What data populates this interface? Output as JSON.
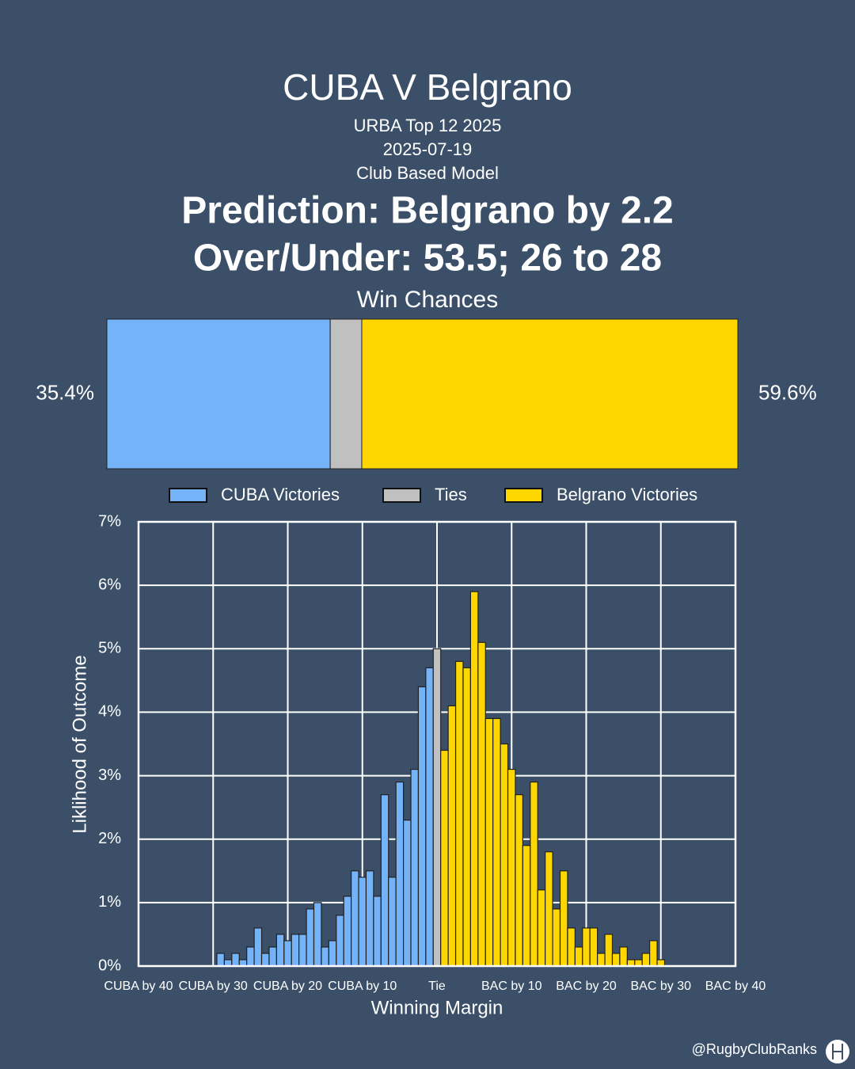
{
  "header": {
    "title": "CUBA V Belgrano",
    "lines": [
      "URBA Top 12 2025",
      "2025-07-19",
      "Club Based Model"
    ],
    "prediction": [
      "Prediction: Belgrano by 2.2",
      "Over/Under: 53.5; 26 to 28"
    ]
  },
  "chart_data": [
    {
      "type": "stacked_hbar",
      "title": "Win Chances",
      "series": [
        {
          "color": "#74b3f7",
          "values": [
            35.4
          ],
          "value_labels": [
            "35.4%"
          ]
        },
        {
          "color": "#c0c0c0",
          "values": [
            5.0
          ]
        },
        {
          "color": "#ffd700",
          "values": [
            59.6
          ],
          "value_labels": [
            "59.6%"
          ]
        }
      ]
    },
    {
      "type": "bar",
      "x_label": "Winning Margin",
      "y_label": "Liklihood of Outcome",
      "xlim": [
        -40,
        40
      ],
      "ylim": [
        0,
        7
      ],
      "grid": true,
      "xticks": [
        {
          "value": -40,
          "label": "CUBA by 40"
        },
        {
          "value": -30,
          "label": "CUBA by 30"
        },
        {
          "value": -20,
          "label": "CUBA by 20"
        },
        {
          "value": -10,
          "label": "CUBA by 10"
        },
        {
          "value": 0,
          "label": "Tie"
        },
        {
          "value": 10,
          "label": "BAC by 10"
        },
        {
          "value": 20,
          "label": "BAC by 20"
        },
        {
          "value": 30,
          "label": "BAC by 30"
        },
        {
          "value": 40,
          "label": "BAC by 40"
        }
      ],
      "yticks": [
        {
          "value": 0,
          "label": "0%"
        },
        {
          "value": 1,
          "label": "1%"
        },
        {
          "value": 2,
          "label": "2%"
        },
        {
          "value": 3,
          "label": "3%"
        },
        {
          "value": 4,
          "label": "4%"
        },
        {
          "value": 5,
          "label": "5%"
        },
        {
          "value": 6,
          "label": "6%"
        },
        {
          "value": 7,
          "label": "7%"
        }
      ],
      "series": [
        {
          "name": "CUBA Victories",
          "color": "#74b3f7",
          "x": [
            -29,
            -28,
            -27,
            -26,
            -25,
            -24,
            -23,
            -22,
            -21,
            -20,
            -19,
            -18,
            -17,
            -16,
            -15,
            -14,
            -13,
            -12,
            -11,
            -10,
            -9,
            -8,
            -7,
            -6,
            -5,
            -4,
            -3,
            -2,
            -1
          ],
          "values": [
            0.2,
            0.1,
            0.2,
            0.1,
            0.3,
            0.6,
            0.2,
            0.3,
            0.5,
            0.4,
            0.5,
            0.5,
            0.9,
            1.0,
            0.3,
            0.4,
            0.8,
            1.1,
            1.5,
            1.4,
            1.5,
            1.1,
            2.7,
            1.4,
            2.9,
            2.3,
            3.1,
            4.4,
            4.7
          ]
        },
        {
          "name": "Ties",
          "color": "#c0c0c0",
          "x": [
            0
          ],
          "values": [
            5.0
          ]
        },
        {
          "name": "Belgrano Victories",
          "color": "#ffd700",
          "x": [
            1,
            2,
            3,
            4,
            5,
            6,
            7,
            8,
            9,
            10,
            11,
            12,
            13,
            14,
            15,
            16,
            17,
            18,
            19,
            20,
            21,
            22,
            23,
            24,
            25,
            26,
            27,
            28,
            29,
            30
          ],
          "values": [
            3.4,
            4.1,
            4.8,
            4.7,
            5.9,
            5.1,
            3.9,
            3.9,
            3.5,
            3.1,
            2.7,
            1.9,
            2.9,
            1.2,
            1.8,
            0.9,
            1.5,
            0.6,
            0.3,
            0.6,
            0.6,
            0.2,
            0.5,
            0.2,
            0.3,
            0.1,
            0.1,
            0.2,
            0.4,
            0.1
          ]
        }
      ]
    }
  ],
  "footer": {
    "credit": "@RugbyClubRanks"
  }
}
